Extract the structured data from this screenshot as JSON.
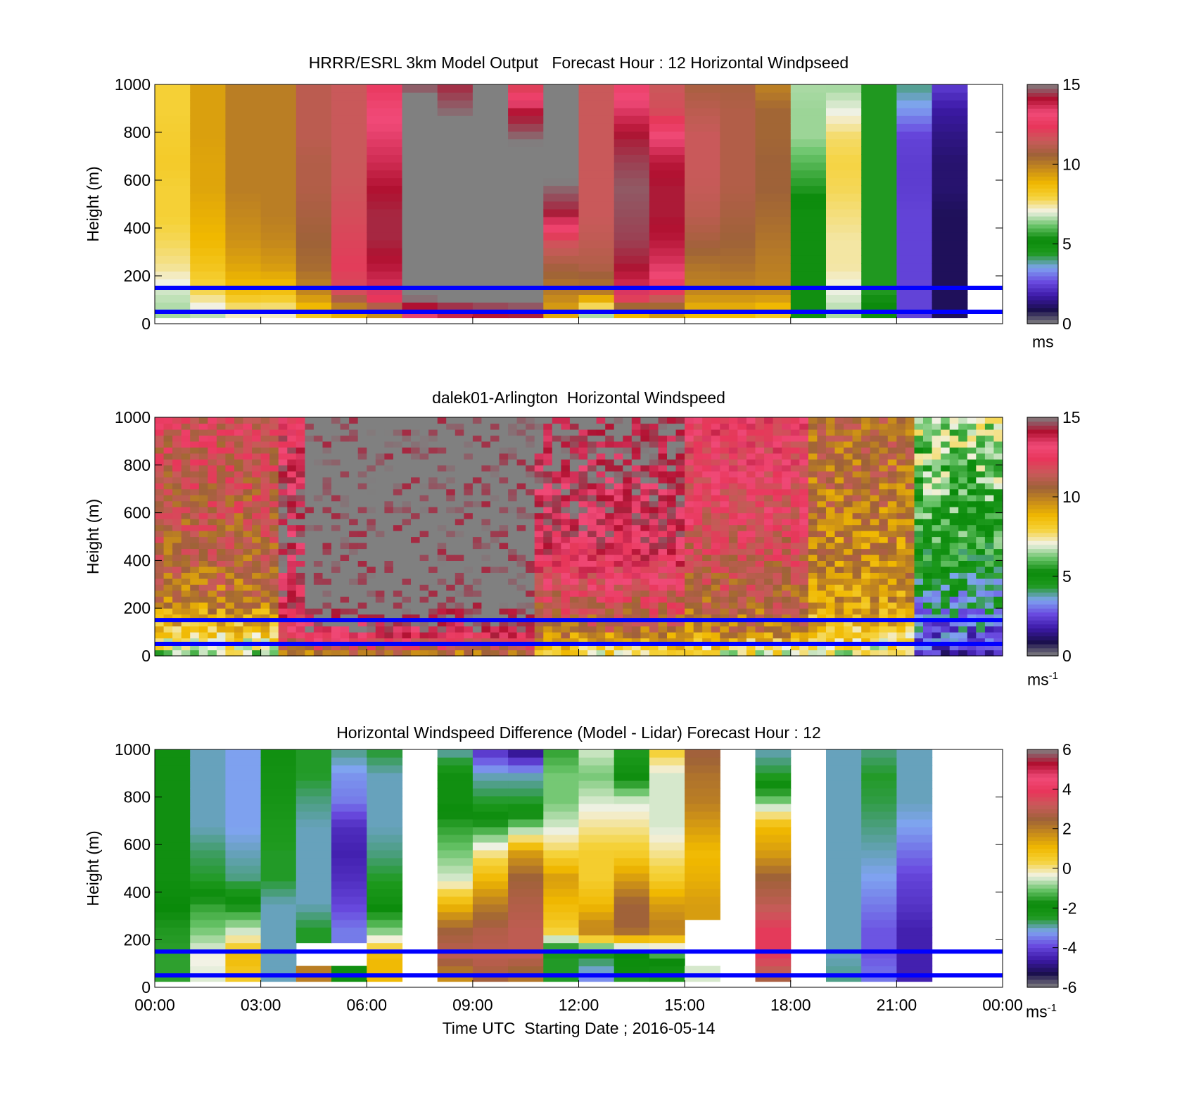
{
  "panels": [
    {
      "title": "HRRR/ESRL 3km Model Output   Forecast Hour : 12 Horizontal Windpseed",
      "ylabel": "Height (m)",
      "yticks": [
        "0",
        "200",
        "400",
        "600",
        "800",
        "1000"
      ],
      "colorbar": {
        "ticks": [
          "0",
          "5",
          "10",
          "15"
        ],
        "unit": "ms",
        "unit_sup": "",
        "range": [
          0,
          15
        ],
        "colors": [
          "#808080",
          "#1a0f4e",
          "#3d1aa8",
          "#6a4be0",
          "#7fa4f0",
          "#1e9a1e",
          "#0a8a0a",
          "#6ac46a",
          "#f2f2e6",
          "#f5d23a",
          "#f0b800",
          "#c88c1a",
          "#9e6238",
          "#c85a5a",
          "#e8365a",
          "#f04a78",
          "#b01030",
          "#808080"
        ]
      },
      "kind": "model"
    },
    {
      "title": "dalek01-Arlington  Horizontal Windspeed",
      "ylabel": "Height (m)",
      "yticks": [
        "0",
        "200",
        "400",
        "600",
        "800",
        "1000"
      ],
      "colorbar": {
        "ticks": [
          "0",
          "5",
          "10",
          "15"
        ],
        "unit": "ms",
        "unit_sup": "-1",
        "range": [
          0,
          15
        ],
        "colors": [
          "#808080",
          "#1a0f4e",
          "#3d1aa8",
          "#6a4be0",
          "#7fa4f0",
          "#1e9a1e",
          "#0a8a0a",
          "#6ac46a",
          "#f2f2e6",
          "#f5d23a",
          "#f0b800",
          "#c88c1a",
          "#9e6238",
          "#c85a5a",
          "#e8365a",
          "#f04a78",
          "#b01030",
          "#808080"
        ]
      },
      "kind": "lidar"
    },
    {
      "title": "Horizontal Windspeed Difference (Model - Lidar) Forecast Hour : 12",
      "ylabel": "Height (m)",
      "yticks": [
        "0",
        "200",
        "400",
        "600",
        "800",
        "1000"
      ],
      "colorbar": {
        "ticks": [
          "-6",
          "-4",
          "-2",
          "0",
          "2",
          "4",
          "6"
        ],
        "unit": "ms",
        "unit_sup": "-1",
        "range": [
          -6,
          6
        ],
        "colors": [
          "#808080",
          "#1a0f4e",
          "#3d1aa8",
          "#6a4be0",
          "#7fa4f0",
          "#1e9a1e",
          "#0a8a0a",
          "#6ac46a",
          "#f2f2e6",
          "#f5d23a",
          "#f0b800",
          "#c88c1a",
          "#9e6238",
          "#c85a5a",
          "#e8365a",
          "#f04a78",
          "#b01030",
          "#808080"
        ]
      },
      "kind": "diff"
    }
  ],
  "xticks": [
    "00:00",
    "03:00",
    "06:00",
    "09:00",
    "12:00",
    "15:00",
    "18:00",
    "21:00",
    "00:00"
  ],
  "xlabel": "Time UTC  Starting Date ; 2016-05-14",
  "chart_data": [
    {
      "type": "heatmap",
      "title": "HRRR/ESRL 3km Model Output   Forecast Hour : 12 Horizontal Windpseed",
      "ylabel": "Height (m)",
      "ylim": [
        0,
        1000
      ],
      "x_range_hours": [
        0,
        24
      ],
      "colorbar_range": [
        0,
        15
      ],
      "colorbar_unit": "ms",
      "reference_lines_m": [
        150,
        50
      ],
      "reference_line_color": "#0000ff",
      "column_width_hours": 1,
      "columns": [
        {
          "hour": 0,
          "values": [
            6.5,
            6.8,
            7.5,
            7.8,
            8.0,
            8.0,
            8.2,
            8.1,
            8.0,
            8.0
          ]
        },
        {
          "hour": 1,
          "values": [
            6.5,
            7.8,
            8.4,
            8.8,
            9.0,
            9.2,
            9.2,
            9.3,
            9.3,
            9.3
          ]
        },
        {
          "hour": 2,
          "values": [
            7.0,
            8.6,
            9.2,
            9.6,
            9.8,
            10.0,
            10.0,
            10.0,
            10.0,
            10.0
          ]
        },
        {
          "hour": 3,
          "values": [
            7.0,
            8.5,
            9.4,
            9.8,
            10.0,
            10.0,
            10.0,
            10.0,
            10.0,
            10.0
          ]
        },
        {
          "hour": 4,
          "values": [
            8.0,
            9.8,
            10.4,
            10.6,
            10.8,
            11.0,
            11.0,
            11.2,
            11.2,
            11.2
          ]
        },
        {
          "hour": 5,
          "values": [
            8.5,
            11.8,
            12.2,
            12.0,
            11.8,
            11.6,
            11.5,
            11.5,
            11.5,
            11.5
          ]
        },
        {
          "hour": 6,
          "values": [
            9.0,
            13.5,
            14.0,
            14.3,
            14.3,
            14.1,
            13.7,
            13.4,
            13.1,
            12.5
          ]
        },
        {
          "hour": 7,
          "values": [
            13.0,
            15.5,
            15.5,
            15.5,
            15.5,
            15.5,
            15.5,
            15.5,
            15.5,
            14.6
          ]
        },
        {
          "hour": 8,
          "values": [
            13.5,
            15.5,
            15.5,
            15.5,
            15.5,
            15.5,
            15.5,
            15.5,
            14.8,
            14.3
          ]
        },
        {
          "hour": 9,
          "values": [
            13.8,
            15.5,
            15.5,
            15.5,
            15.5,
            15.5,
            15.5,
            15.5,
            15.5,
            15.5
          ]
        },
        {
          "hour": 10,
          "values": [
            14.0,
            15.5,
            15.5,
            15.5,
            15.5,
            15.5,
            15.5,
            14.8,
            14.0,
            11.8
          ]
        },
        {
          "hour": 11,
          "values": [
            9.0,
            10.0,
            10.8,
            11.8,
            14.2,
            14.8,
            15.5,
            15.5,
            15.5,
            15.5
          ]
        },
        {
          "hour": 12,
          "values": [
            6.0,
            10.0,
            11.0,
            11.3,
            11.5,
            11.5,
            11.5,
            11.5,
            11.5,
            11.5
          ]
        },
        {
          "hour": 13,
          "values": [
            8.0,
            13.5,
            14.2,
            14.5,
            14.6,
            14.7,
            14.5,
            14.2,
            13.5,
            12.8
          ]
        },
        {
          "hour": 14,
          "values": [
            9.0,
            12.2,
            13.5,
            14.0,
            14.2,
            14.2,
            14.0,
            13.2,
            11.8,
            11.5
          ]
        },
        {
          "hour": 15,
          "values": [
            8.5,
            9.8,
            10.2,
            10.8,
            11.2,
            11.4,
            11.5,
            11.5,
            11.2,
            10.8
          ]
        },
        {
          "hour": 16,
          "values": [
            8.5,
            9.8,
            10.3,
            10.6,
            10.8,
            11.0,
            11.0,
            11.0,
            11.0,
            10.8
          ]
        },
        {
          "hour": 17,
          "values": [
            8.0,
            9.8,
            10.0,
            10.2,
            10.4,
            10.6,
            10.6,
            10.5,
            10.5,
            9.9
          ]
        },
        {
          "hour": 18,
          "values": [
            5.0,
            5.0,
            5.0,
            5.0,
            5.0,
            5.5,
            6.0,
            6.5,
            6.5,
            6.6
          ]
        },
        {
          "hour": 19,
          "values": [
            6.5,
            7.0,
            7.4,
            7.4,
            7.6,
            7.8,
            7.9,
            7.7,
            7.0,
            6.5
          ]
        },
        {
          "hour": 20,
          "values": [
            5.0,
            5.5,
            5.5,
            5.5,
            5.5,
            5.5,
            5.5,
            5.5,
            5.5,
            5.5
          ]
        },
        {
          "hour": 21,
          "values": [
            2.5,
            2.5,
            2.5,
            2.5,
            2.5,
            2.4,
            2.4,
            2.5,
            3.4,
            4.0
          ]
        },
        {
          "hour": 22,
          "values": [
            1.0,
            1.0,
            1.0,
            1.0,
            1.0,
            1.2,
            1.2,
            1.4,
            1.7,
            2.4
          ]
        }
      ]
    },
    {
      "type": "heatmap",
      "title": "dalek01-Arlington  Horizontal Windspeed",
      "ylabel": "Height (m)",
      "ylim": [
        0,
        1000
      ],
      "x_range_hours": [
        0,
        24
      ],
      "colorbar_range": [
        0,
        15
      ],
      "colorbar_unit": "ms-1",
      "reference_lines_m": [
        150,
        50
      ],
      "reference_line_color": "#0000ff",
      "column_width_hours": 0.25,
      "profile_groups": [
        {
          "start_hour": 0,
          "end_hour": 3.5,
          "values": [
            6.5,
            8.5,
            10.0,
            10.5,
            10.8,
            11.0,
            11.2,
            11.4,
            11.6,
            11.8
          ]
        },
        {
          "start_hour": 3.5,
          "end_hour": 4.25,
          "values": [
            9.0,
            12.5,
            13.5,
            14.0,
            14.3,
            14.5,
            14.3,
            14.0,
            13.5,
            13.0
          ]
        },
        {
          "start_hour": 4.25,
          "end_hour": 10.75,
          "values": [
            10.0,
            14.2,
            15.5,
            15.5,
            15.5,
            15.5,
            15.5,
            15.5,
            15.5,
            15.5
          ]
        },
        {
          "start_hour": 10.75,
          "end_hour": 15.0,
          "values": [
            7.5,
            10.5,
            11.5,
            12.5,
            13.3,
            13.8,
            14.2,
            14.4,
            14.6,
            14.8
          ]
        },
        {
          "start_hour": 15.0,
          "end_hour": 18.5,
          "values": [
            7.0,
            10.0,
            10.8,
            11.2,
            11.6,
            12.0,
            12.2,
            12.4,
            12.6,
            12.8
          ]
        },
        {
          "start_hour": 18.5,
          "end_hour": 21.5,
          "values": [
            7.0,
            8.5,
            9.3,
            9.6,
            9.8,
            10.0,
            10.2,
            10.3,
            10.5,
            10.6
          ]
        },
        {
          "start_hour": 21.5,
          "end_hour": 24.0,
          "values": [
            2.0,
            3.0,
            3.8,
            4.6,
            5.2,
            5.6,
            6.0,
            6.3,
            6.5,
            6.8
          ]
        }
      ]
    },
    {
      "type": "heatmap",
      "title": "Horizontal Windspeed Difference (Model - Lidar) Forecast Hour : 12",
      "ylabel": "Height (m)",
      "xlabel": "Time UTC  Starting Date ; 2016-05-14",
      "ylim": [
        0,
        1000
      ],
      "x_range_hours": [
        0,
        24
      ],
      "colorbar_range": [
        -6,
        6
      ],
      "colorbar_unit": "ms-1",
      "reference_lines_m": [
        150,
        50
      ],
      "reference_line_color": "#0000ff",
      "column_width_hours": 1,
      "columns": [
        {
          "hour": 0,
          "values": [
            -1.5,
            -1.5,
            -1.6,
            -1.8,
            -2.0,
            -2.0,
            -2.0,
            -2.0,
            -2.0,
            -2.0
          ]
        },
        {
          "hour": 1,
          "values": [
            -0.5,
            -0.3,
            -1.0,
            -1.5,
            -2.5,
            -2.7,
            -3.0,
            -3.0,
            -3.0,
            -3.0
          ]
        },
        {
          "hour": 2,
          "values": [
            0.5,
            1.0,
            -0.6,
            -1.8,
            -2.8,
            -3.0,
            -3.2,
            -3.2,
            -3.2,
            -3.2
          ]
        },
        {
          "hour": 3,
          "values": [
            -3.0,
            -3.0,
            -3.0,
            -3.0,
            -2.5,
            -2.5,
            -2.4,
            -2.2,
            -2.1,
            -2.0
          ]
        },
        {
          "hour": 4,
          "values": [
            2.0,
            null,
            -2.5,
            -3.0,
            -3.0,
            -3.0,
            -3.0,
            -2.8,
            -2.5,
            -2.5
          ]
        },
        {
          "hour": 5,
          "values": [
            -2.0,
            null,
            -3.5,
            -4.0,
            -4.3,
            -4.5,
            -4.3,
            -3.5,
            -3.3,
            -2.8
          ]
        },
        {
          "hour": 6,
          "values": [
            1.0,
            1.0,
            -1.0,
            -2.0,
            -2.5,
            -2.8,
            -3.0,
            -3.0,
            -3.0,
            -2.5
          ]
        },
        {
          "hour": 7,
          "values": [
            null,
            null,
            null,
            null,
            null,
            null,
            null,
            null,
            null,
            null
          ]
        },
        {
          "hour": 8,
          "values": [
            1.5,
            3.0,
            2.5,
            1.0,
            -0.5,
            -1.0,
            -1.5,
            -2.0,
            -2.0,
            -3.0
          ]
        },
        {
          "hour": 9,
          "values": [
            2.5,
            3.0,
            2.8,
            2.0,
            1.0,
            0.0,
            -1.5,
            -2.5,
            -3.0,
            -4.3
          ]
        },
        {
          "hour": 10,
          "values": [
            2.0,
            3.0,
            3.0,
            2.8,
            2.5,
            1.5,
            -1.0,
            -2.5,
            -3.0,
            -5.0
          ]
        },
        {
          "hour": 11,
          "values": [
            -2.5,
            -2.5,
            0.5,
            1.0,
            1.5,
            0.3,
            -0.5,
            -1.0,
            -1.0,
            -1.5
          ]
        },
        {
          "hour": 12,
          "values": [
            -3.5,
            -2.5,
            2.0,
            1.0,
            0.5,
            0.5,
            0.0,
            -0.5,
            -1.0,
            -0.5
          ]
        },
        {
          "hour": 13,
          "values": [
            -1.5,
            -2.0,
            2.5,
            2.5,
            1.5,
            0.5,
            0.0,
            -0.5,
            -2.0,
            -2.5
          ]
        },
        {
          "hour": 14,
          "values": [
            -2.5,
            -1.5,
            2.0,
            1.5,
            0.5,
            0.0,
            -0.5,
            -0.5,
            -0.5,
            0.5
          ]
        },
        {
          "hour": 15,
          "values": [
            -0.5,
            null,
            null,
            1.5,
            1.2,
            1.0,
            1.5,
            2.0,
            2.2,
            2.6
          ]
        },
        {
          "hour": 16,
          "values": [
            null,
            null,
            null,
            null,
            null,
            null,
            null,
            null,
            null,
            null
          ]
        },
        {
          "hour": 17,
          "values": [
            2.5,
            3.8,
            3.8,
            3.0,
            2.5,
            1.5,
            1.0,
            -1.0,
            -2.5,
            -3.0
          ]
        },
        {
          "hour": 18,
          "values": [
            null,
            null,
            null,
            null,
            null,
            null,
            null,
            null,
            null,
            null
          ]
        },
        {
          "hour": 19,
          "values": [
            -2.8,
            -3.0,
            -3.0,
            -3.0,
            -3.0,
            -3.0,
            -3.0,
            -3.0,
            -3.0,
            -3.0
          ]
        },
        {
          "hour": 20,
          "values": [
            -3.5,
            -3.8,
            -3.8,
            -3.5,
            -3.2,
            -3.0,
            -2.8,
            -2.6,
            -2.5,
            -2.8
          ]
        },
        {
          "hour": 21,
          "values": [
            -4.5,
            -4.5,
            -4.5,
            -4.2,
            -4.0,
            -3.6,
            -3.2,
            -3.0,
            -3.0,
            -3.0
          ]
        }
      ]
    }
  ]
}
